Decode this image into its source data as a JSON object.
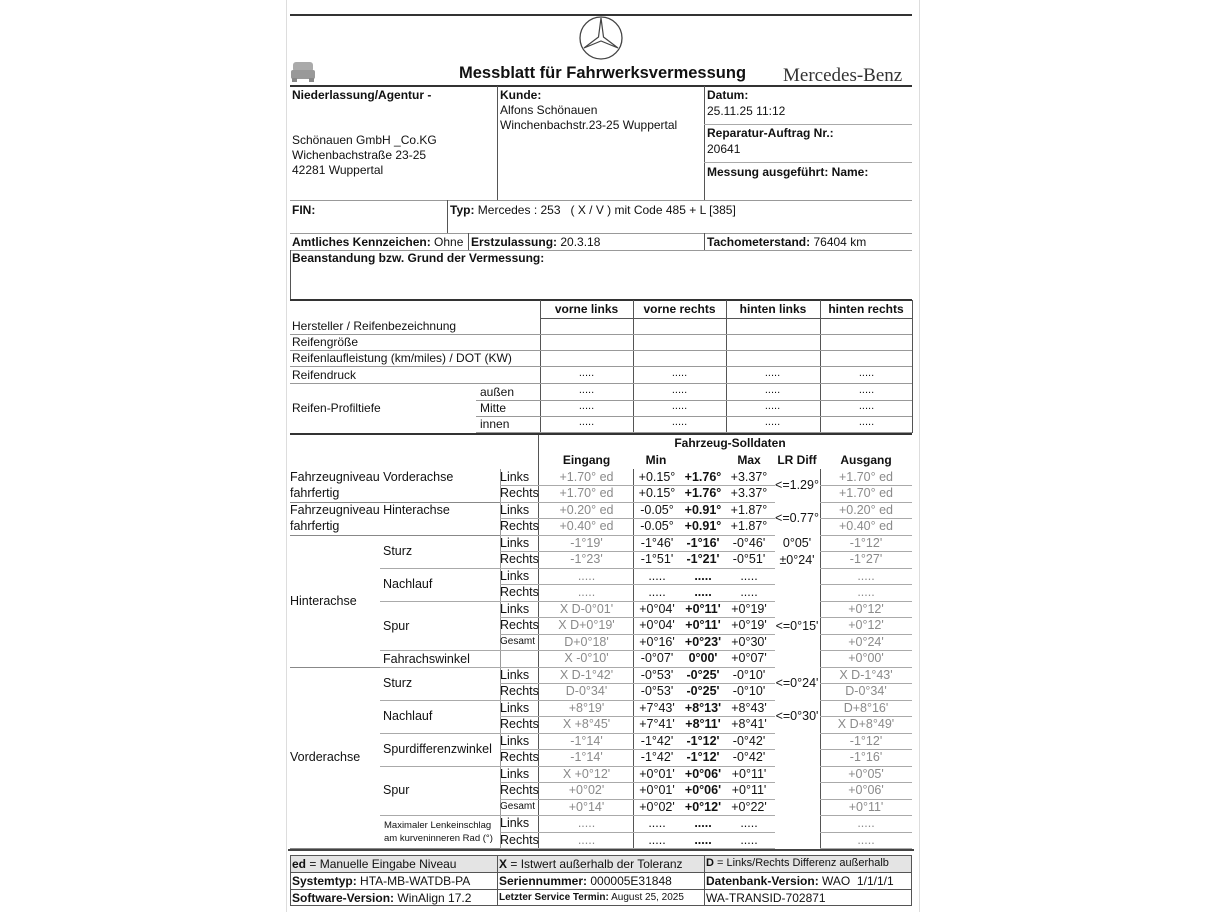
{
  "header": {
    "title": "Messblatt für Fahrwerksvermessung",
    "brand": "Mercedes-Benz"
  },
  "info": {
    "niederlassung_label": "Niederlassung/Agentur -",
    "niederlassung_lines": [
      "Schönauen GmbH _Co.KG",
      "Wichenbachstraße 23-25",
      "42281 Wuppertal"
    ],
    "kunde_label": "Kunde:",
    "kunde_lines": [
      "Alfons Schönauen",
      "Winchenbachstr.23-25 Wuppertal"
    ],
    "datum_label": "Datum:",
    "datum": "25.11.25 11:12",
    "auftrag_label": "Reparatur-Auftrag Nr.:",
    "auftrag": "20641",
    "messung_label": "Messung ausgeführt: Name:",
    "fin_label": "FIN:",
    "typ_label": "Typ:",
    "typ": "Mercedes : 253   ( X / V ) mit Code 485 + L [385]",
    "kennzeichen_label": "Amtliches Kennzeichen:",
    "kennzeichen": "Ohne",
    "erstzulassung_label": "Erstzulassung:",
    "erstzulassung": "20.3.18",
    "tacho_label": "Tachometerstand:",
    "tacho": "76404 km",
    "beanstandung_label": "Beanstandung bzw. Grund der Vermessung:"
  },
  "tires": {
    "columns": [
      "vorne links",
      "vorne rechts",
      "hinten links",
      "hinten rechts"
    ],
    "rows": [
      "Hersteller / Reifenbezeichnung",
      "Reifengröße",
      "Reifenlaufleistung (km/miles) / DOT (KW)",
      "Reifendruck"
    ],
    "profil_label": "Reifen-Profiltiefe",
    "profil_rows": [
      "außen",
      "Mitte",
      "innen"
    ],
    "placeholder": "....."
  },
  "measure": {
    "title": "Fahrzeug-Solldaten",
    "columns": {
      "eingang": "Eingang",
      "min": "Min",
      "max": "Max",
      "lrdiff": "LR Diff",
      "ausgang": "Ausgang"
    },
    "groups": [
      {
        "label": "Fahrzeugniveau Vorderachse",
        "label2": "fahrfertig",
        "start": 0,
        "span": 2,
        "level": "main"
      },
      {
        "label": "Fahrzeugniveau Hinterachse",
        "label2": "fahrfertig",
        "start": 2,
        "span": 2,
        "level": "main"
      },
      {
        "label": "Hinterachse",
        "start": 4,
        "span": 8,
        "level": "axle"
      },
      {
        "label": "Sturz",
        "start": 4,
        "span": 2,
        "level": "sub"
      },
      {
        "label": "Nachlauf",
        "start": 6,
        "span": 2,
        "level": "sub"
      },
      {
        "label": "Spur",
        "start": 8,
        "span": 3,
        "level": "sub"
      },
      {
        "label": "Fahrachswinkel",
        "start": 11,
        "span": 1,
        "level": "sub"
      },
      {
        "label": "Vorderachse",
        "start": 12,
        "span": 11,
        "level": "axle"
      },
      {
        "label": "Sturz",
        "start": 12,
        "span": 2,
        "level": "sub"
      },
      {
        "label": "Nachlauf",
        "start": 14,
        "span": 2,
        "level": "sub"
      },
      {
        "label": "Spurdifferenzwinkel",
        "start": 16,
        "span": 2,
        "level": "sub"
      },
      {
        "label": "Spur",
        "start": 18,
        "span": 3,
        "level": "sub"
      },
      {
        "label": "Maximaler Lenkeinschlag",
        "label2": "am kurveninneren Rad (°)",
        "start": 21,
        "span": 2,
        "level": "small"
      }
    ],
    "lrdiff": [
      {
        "text": "<=1.29°",
        "start": 0,
        "span": 2
      },
      {
        "text": "<=0.77°",
        "start": 2,
        "span": 2
      },
      {
        "text": "0°05'",
        "start": 4,
        "span": 1
      },
      {
        "text": "±0°24'",
        "start": 5,
        "span": 1
      },
      {
        "text": "<=0°15'",
        "start": 8,
        "span": 3
      },
      {
        "text": "<=0°24'",
        "start": 12,
        "span": 2
      },
      {
        "text": "<=0°30'",
        "start": 14,
        "span": 2
      }
    ],
    "rows": [
      {
        "side": "Links",
        "eingang": "+1.70° ed",
        "min": "+0.15°",
        "nom": "+1.76°",
        "max": "+3.37°",
        "ausgang": "+1.70° ed"
      },
      {
        "side": "Rechts",
        "eingang": "+1.70° ed",
        "min": "+0.15°",
        "nom": "+1.76°",
        "max": "+3.37°",
        "ausgang": "+1.70° ed"
      },
      {
        "side": "Links",
        "eingang": "+0.20° ed",
        "min": "-0.05°",
        "nom": "+0.91°",
        "max": "+1.87°",
        "ausgang": "+0.20° ed"
      },
      {
        "side": "Rechts",
        "eingang": "+0.40° ed",
        "min": "-0.05°",
        "nom": "+0.91°",
        "max": "+1.87°",
        "ausgang": "+0.40° ed"
      },
      {
        "side": "Links",
        "eingang": "-1°19'",
        "min": "-1°46'",
        "nom": "-1°16'",
        "max": "-0°46'",
        "ausgang": "-1°12'"
      },
      {
        "side": "Rechts",
        "eingang": "-1°23'",
        "min": "-1°51'",
        "nom": "-1°21'",
        "max": "-0°51'",
        "ausgang": "-1°27'"
      },
      {
        "side": "Links",
        "eingang": ".....",
        "min": ".....",
        "nom": ".....",
        "max": ".....",
        "ausgang": "....."
      },
      {
        "side": "Rechts",
        "eingang": ".....",
        "min": ".....",
        "nom": ".....",
        "max": ".....",
        "ausgang": "....."
      },
      {
        "side": "Links",
        "eingang": "X D-0°01'",
        "min": "+0°04'",
        "nom": "+0°11'",
        "max": "+0°19'",
        "ausgang": "+0°12'"
      },
      {
        "side": "Rechts",
        "eingang": "X D+0°19'",
        "min": "+0°04'",
        "nom": "+0°11'",
        "max": "+0°19'",
        "ausgang": "+0°12'"
      },
      {
        "side": "Gesamt",
        "eingang": "D+0°18'",
        "min": "+0°16'",
        "nom": "+0°23'",
        "max": "+0°30'",
        "ausgang": "+0°24'"
      },
      {
        "side": "",
        "eingang": "X -0°10'",
        "min": "-0°07'",
        "nom": "0°00'",
        "max": "+0°07'",
        "ausgang": "+0°00'"
      },
      {
        "side": "Links",
        "eingang": "X D-1°42'",
        "min": "-0°53'",
        "nom": "-0°25'",
        "max": "-0°10'",
        "ausgang": "X D-1°43'"
      },
      {
        "side": "Rechts",
        "eingang": "D-0°34'",
        "min": "-0°53'",
        "nom": "-0°25'",
        "max": "-0°10'",
        "ausgang": "D-0°34'"
      },
      {
        "side": "Links",
        "eingang": "+8°19'",
        "min": "+7°43'",
        "nom": "+8°13'",
        "max": "+8°43'",
        "ausgang": "D+8°16'"
      },
      {
        "side": "Rechts",
        "eingang": "X +8°45'",
        "min": "+7°41'",
        "nom": "+8°11'",
        "max": "+8°41'",
        "ausgang": "X D+8°49'"
      },
      {
        "side": "Links",
        "eingang": "-1°14'",
        "min": "-1°42'",
        "nom": "-1°12'",
        "max": "-0°42'",
        "ausgang": "-1°12'"
      },
      {
        "side": "Rechts",
        "eingang": "-1°14'",
        "min": "-1°42'",
        "nom": "-1°12'",
        "max": "-0°42'",
        "ausgang": "-1°16'"
      },
      {
        "side": "Links",
        "eingang": "X +0°12'",
        "min": "+0°01'",
        "nom": "+0°06'",
        "max": "+0°11'",
        "ausgang": "+0°05'"
      },
      {
        "side": "Rechts",
        "eingang": "+0°02'",
        "min": "+0°01'",
        "nom": "+0°06'",
        "max": "+0°11'",
        "ausgang": "+0°06'"
      },
      {
        "side": "Gesamt",
        "eingang": "+0°14'",
        "min": "+0°02'",
        "nom": "+0°12'",
        "max": "+0°22'",
        "ausgang": "+0°11'"
      },
      {
        "side": "Links",
        "eingang": ".....",
        "min": ".....",
        "nom": ".....",
        "max": ".....",
        "ausgang": "....."
      },
      {
        "side": "Rechts",
        "eingang": ".....",
        "min": ".....",
        "nom": ".....",
        "max": ".....",
        "ausgang": "....."
      }
    ]
  },
  "footer": {
    "ed_label": "ed",
    "ed_text": "= Manuelle Eingabe Niveau",
    "x_label": "X",
    "x_text": "= Istwert außerhalb der Toleranz",
    "d_label": "D",
    "d_text": "= Links/Rechts Differenz außerhalb",
    "systemtyp_label": "Systemtyp:",
    "systemtyp": "HTA-MB-WATDB-PA",
    "serien_label": "Seriennummer:",
    "serien": "000005E31848",
    "db_label": "Datenbank-Version:",
    "db": "WAO  1/1/1/1",
    "sw_label": "Software-Version:",
    "sw": "WinAlign 17.2",
    "service_label": "Letzter Service Termin:",
    "service": "August 25, 2025",
    "transid": "WA-TRANSID-702871"
  }
}
